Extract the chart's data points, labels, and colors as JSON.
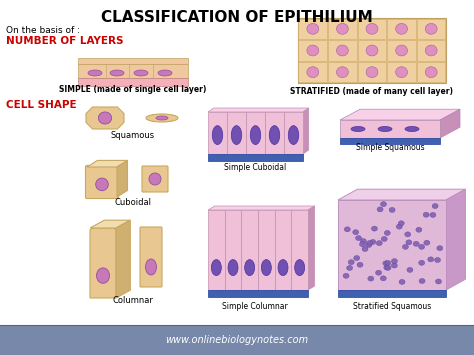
{
  "title": "CLASSIFICATION OF EPITHILIUM",
  "title_fontsize": 11,
  "title_fontweight": "bold",
  "bg_color": "#ffffff",
  "footer_bg": "#7788aa",
  "footer_text": "www.onlinebiologynotes.com",
  "footer_text_color": "#ffffff",
  "on_basis_text": "On the basis of :",
  "layers_text": "NUMBER OF LAYERS",
  "layers_color": "#cc0000",
  "cell_shape_text": "CELL SHAPE",
  "cell_shape_color": "#cc0000",
  "simple_label": "SIMPLE (made of single cell layer)",
  "stratified_label": "STRATIFIED (made of many cell layer)",
  "squamous_label": "Squamous",
  "cuboidal_label": "Cuboidal",
  "columnar_label": "Columnar",
  "simple_cuboidal_label": "Simple Cuboidal",
  "simple_squamous_label": "Simple Squamous",
  "simple_columnar_label": "Simple Columnar",
  "stratified_squamous_label": "Stratified Squamous",
  "cell_body_color": "#e8c890",
  "cell_edge_color": "#c8a860",
  "cell_top_color": "#f0ddb0",
  "cell_right_color": "#d0b070",
  "nucleus_color": "#c878b8",
  "nucleus_edge": "#9050a0",
  "tissue_pink_light": "#f0c0d8",
  "tissue_pink_mid": "#e8a8c8",
  "tissue_pink_dark": "#d090b8",
  "tissue_top_color": "#f8d0e8",
  "tissue_right_color": "#c890b8",
  "tissue_base_color": "#4060b0",
  "tissue_base_edge": "#2040a0",
  "nucleus_tissue_color": "#7050b0",
  "nucleus_tissue_edge": "#5030a0",
  "strat_pink": "#e0b8d8",
  "strat_top": "#eed0e8",
  "strat_right": "#c898c8",
  "strat_nucleus": "#8060b0",
  "simple_strip_color": "#f0c8a0",
  "simple_strip_pink": "#f4b0b8",
  "stratified_cell_color": "#f0d0a0",
  "stratified_nucleus": "#e090c0"
}
